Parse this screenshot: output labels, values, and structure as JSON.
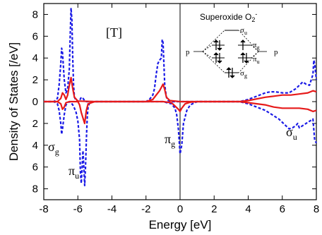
{
  "chart_data": {
    "type": "line",
    "title": "",
    "xlabel": "Energy [eV]",
    "ylabel": "Density of States [/eV]",
    "xlim": [
      -8,
      8
    ],
    "ylim": [
      -9,
      9
    ],
    "x_ticks": [
      -8,
      -6,
      -4,
      -2,
      0,
      2,
      4,
      6,
      8
    ],
    "x_tick_labels": [
      "-8",
      "-6",
      "-4",
      "-2",
      "0",
      "2",
      "4",
      "6",
      "8"
    ],
    "y_ticks": [
      8,
      6,
      4,
      2,
      0,
      -2,
      -4,
      -6,
      -8
    ],
    "y_tick_labels": [
      "8",
      "6",
      "4",
      "2",
      "0",
      "2",
      "4",
      "6",
      "8"
    ],
    "grid": false,
    "fermi_level": 0,
    "series": [
      {
        "color": "#1a1ae6",
        "style": "dashed",
        "x": [
          -8,
          -7.4,
          -7.2,
          -7.1,
          -7.0,
          -6.95,
          -6.9,
          -6.8,
          -6.7,
          -6.6,
          -6.5,
          -6.45,
          -6.4,
          -6.35,
          -6.3,
          -6.25,
          -6.2,
          -6.1,
          -6.0,
          -5.9,
          -5.8,
          -5.7,
          -5.6,
          -5.5,
          -5.4,
          -5.3,
          -5.0,
          -3.0,
          -2.0,
          -1.8,
          -1.6,
          -1.5,
          -1.4,
          -1.3,
          -1.2,
          -1.1,
          -1.05,
          -1.0,
          -0.95,
          -0.9,
          -0.8,
          -0.7,
          -0.5,
          0,
          3.5,
          4.0,
          4.5,
          5.0,
          5.3,
          5.6,
          6.0,
          6.4,
          6.6,
          6.8,
          7.0,
          7.2,
          7.4,
          7.6,
          7.8,
          7.85,
          7.9,
          8.0
        ],
        "y": [
          0,
          0,
          0.3,
          1.5,
          3.5,
          4.9,
          4.5,
          2.0,
          0.8,
          1.2,
          3.0,
          6.0,
          8.6,
          7.5,
          4.0,
          1.5,
          0.4,
          0.1,
          0,
          0.1,
          0.4,
          0.3,
          0.1,
          0,
          0,
          0,
          0,
          0,
          0,
          0.2,
          0.6,
          1.2,
          2.5,
          3.5,
          3.8,
          4.0,
          5.7,
          5.4,
          3.5,
          1.5,
          0.4,
          0.1,
          0,
          0,
          0,
          0.2,
          0.5,
          0.8,
          0.9,
          0.9,
          0.8,
          0.8,
          1.0,
          1.2,
          1.5,
          1.8,
          1.6,
          1.5,
          2.5,
          3.8,
          3.5,
          2.0
        ]
      },
      {
        "color": "#1a1ae6",
        "style": "dashed",
        "x": [
          -8,
          -7.4,
          -7.2,
          -7.1,
          -7.0,
          -6.95,
          -6.9,
          -6.8,
          -6.7,
          -6.6,
          -6.5,
          -6.4,
          -6.3,
          -6.2,
          -6.1,
          -6.0,
          -5.9,
          -5.85,
          -5.8,
          -5.75,
          -5.7,
          -5.65,
          -5.6,
          -5.55,
          -5.5,
          -5.45,
          -5.4,
          -5.3,
          -5.0,
          -2.0,
          -1.0,
          -0.5,
          -0.3,
          -0.2,
          -0.1,
          0,
          0.1,
          0.2,
          0.4,
          0.6,
          1.0,
          3.5,
          4.0,
          4.5,
          5.0,
          5.4,
          5.8,
          6.0,
          6.2,
          6.4,
          6.6,
          6.8,
          6.9,
          7.0,
          7.2,
          7.5,
          7.7,
          7.8,
          7.9,
          8.0
        ],
        "y": [
          0,
          0,
          -0.2,
          -0.8,
          -2.0,
          -3.0,
          -2.5,
          -1.2,
          -0.3,
          -0.1,
          0,
          -0.1,
          -0.3,
          -0.6,
          -1.0,
          -1.8,
          -3.5,
          -6.5,
          -7.5,
          -6.0,
          -4.5,
          -6.0,
          -7.7,
          -6.0,
          -3.5,
          -1.5,
          -0.5,
          -0.1,
          0,
          0,
          0,
          -0.2,
          -0.6,
          -1.2,
          -2.5,
          -4.8,
          -4.0,
          -2.0,
          -0.8,
          -0.3,
          0,
          0,
          -0.2,
          -0.5,
          -0.8,
          -1.2,
          -1.6,
          -1.9,
          -2.2,
          -2.5,
          -2.4,
          -2.2,
          -2.0,
          -2.4,
          -2.2,
          -1.9,
          -1.7,
          -1.6,
          -3.5,
          -3.8
        ]
      },
      {
        "color": "#e61a1a",
        "style": "solid",
        "x": [
          -8,
          -7.2,
          -7.0,
          -6.9,
          -6.8,
          -6.7,
          -6.6,
          -6.5,
          -6.4,
          -6.3,
          -6.2,
          -6.0,
          -5.0,
          -2.0,
          -1.6,
          -1.4,
          -1.2,
          -1.0,
          -0.9,
          -0.8,
          -0.6,
          0,
          3.5,
          4.0,
          5.0,
          5.5,
          6.0,
          6.5,
          7.0,
          7.5,
          7.8,
          8.0
        ],
        "y": [
          0,
          0,
          0.3,
          0.8,
          0.6,
          0.2,
          0.6,
          1.5,
          2.2,
          1.2,
          0.4,
          0.05,
          0,
          0,
          0.2,
          0.6,
          1.0,
          1.6,
          1.1,
          0.4,
          0.1,
          0,
          0,
          0.1,
          0.4,
          0.5,
          0.6,
          0.6,
          0.7,
          0.8,
          1.0,
          0.9
        ]
      },
      {
        "color": "#e61a1a",
        "style": "solid",
        "x": [
          -8,
          -7.2,
          -7.0,
          -6.9,
          -6.8,
          -6.7,
          -6.5,
          -6.0,
          -5.9,
          -5.8,
          -5.7,
          -5.6,
          -5.5,
          -5.4,
          -5.0,
          -1.0,
          -0.5,
          -0.3,
          -0.1,
          0,
          0.1,
          0.3,
          0.6,
          1.0,
          3.5,
          4.0,
          5.0,
          5.5,
          6.0,
          6.5,
          7.0,
          7.5,
          7.8,
          8.0
        ],
        "y": [
          0,
          0,
          -0.2,
          -0.7,
          -0.5,
          -0.1,
          0,
          0,
          -0.3,
          -1.0,
          -1.5,
          -2.0,
          -0.8,
          -0.2,
          0,
          0,
          -0.1,
          -0.4,
          -0.7,
          -0.9,
          -0.6,
          -0.2,
          -0.05,
          0,
          0,
          -0.1,
          -0.3,
          -0.5,
          -0.6,
          -0.6,
          -0.6,
          -0.7,
          -0.9,
          -0.8
        ]
      }
    ]
  },
  "annotations": {
    "panel_label": "[T]",
    "sigma_g": {
      "main": "σ",
      "sub": "g"
    },
    "pi_u": {
      "main": "π",
      "sub": "u"
    },
    "pi_g": {
      "main": "π",
      "sub": "g"
    },
    "sigma_u": {
      "main": "σ",
      "sub": "u"
    }
  },
  "inset": {
    "title": "Superoxide O",
    "title_sub": "2",
    "title_sup": "-",
    "left_label": "p",
    "right_label": "p",
    "levels": [
      {
        "main": "σ",
        "sub": "u"
      },
      {
        "main": "π",
        "sub": "g"
      },
      {
        "main": "π",
        "sub": "u"
      },
      {
        "main": "σ",
        "sub": "g"
      }
    ]
  }
}
